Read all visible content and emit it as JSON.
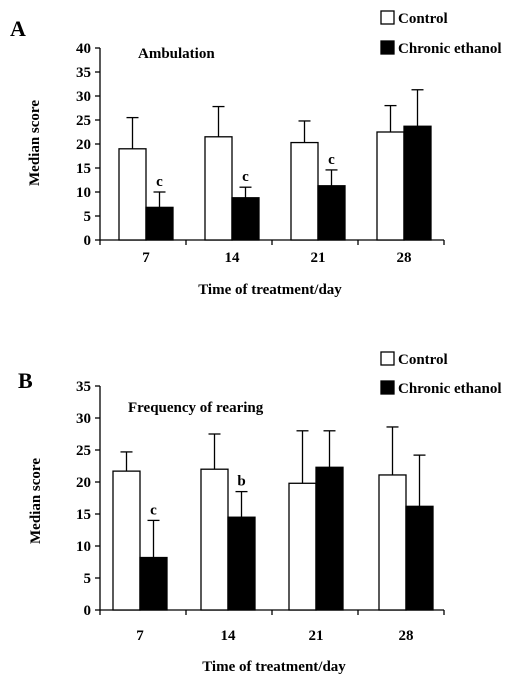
{
  "colors": {
    "control": "#ffffff",
    "ethanol": "#000000",
    "axis": "#000000"
  },
  "chart_data": [
    {
      "type": "bar",
      "panel_label": "A",
      "title": "Ambulation",
      "xlabel": "Time of treatment/day",
      "ylabel": "Median score",
      "ylim": [
        0,
        40
      ],
      "yticks": [
        0,
        5,
        10,
        15,
        20,
        25,
        30,
        35,
        40
      ],
      "categories": [
        "7",
        "14",
        "21",
        "28"
      ],
      "series": [
        {
          "name": "Control",
          "values": [
            19,
            21.5,
            20.3,
            22.5
          ],
          "error": [
            6.5,
            6.3,
            4.5,
            5.5
          ]
        },
        {
          "name": "Chronic ethanol",
          "values": [
            6.8,
            8.8,
            11.3,
            23.7
          ],
          "error": [
            3.2,
            2.2,
            3.3,
            7.6
          ]
        }
      ],
      "annotations": [
        {
          "category": "7",
          "series": "Chronic ethanol",
          "text": "c"
        },
        {
          "category": "14",
          "series": "Chronic ethanol",
          "text": "c"
        },
        {
          "category": "21",
          "series": "Chronic ethanol",
          "text": "c"
        }
      ],
      "legend": "top-right",
      "grid": false
    },
    {
      "type": "bar",
      "panel_label": "B",
      "title": "Frequency of rearing",
      "xlabel": "Time of treatment/day",
      "ylabel": "Median score",
      "ylim": [
        0,
        35
      ],
      "yticks": [
        0,
        5,
        10,
        15,
        20,
        25,
        30,
        35
      ],
      "categories": [
        "7",
        "14",
        "21",
        "28"
      ],
      "series": [
        {
          "name": "Control",
          "values": [
            21.7,
            22,
            19.8,
            21.1
          ],
          "error": [
            3,
            5.5,
            8.2,
            7.5
          ]
        },
        {
          "name": "Chronic ethanol",
          "values": [
            8.2,
            14.5,
            22.3,
            16.2
          ],
          "error": [
            5.8,
            4,
            5.7,
            8
          ]
        }
      ],
      "annotations": [
        {
          "category": "7",
          "series": "Chronic ethanol",
          "text": "c"
        },
        {
          "category": "14",
          "series": "Chronic ethanol",
          "text": "b"
        }
      ],
      "legend": "top-right",
      "grid": false
    }
  ]
}
